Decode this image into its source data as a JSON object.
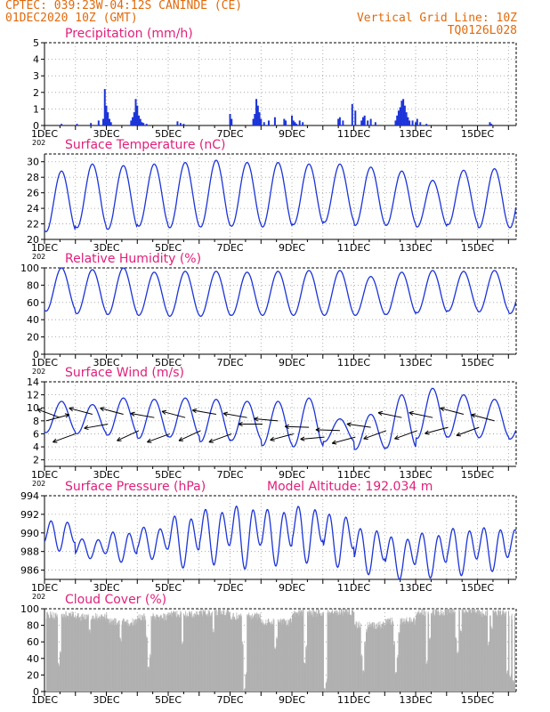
{
  "header": {
    "left_line1": "CPTEC:   039:23W-04:12S  CANINDE (CE)",
    "left_line2": "01DEC2020 10Z (GMT)",
    "right_line1": "Vertical Grid Line: 10Z",
    "right_line2": "TQ0126L028"
  },
  "colors": {
    "header": "#e06a0c",
    "title": "#e0207a",
    "series": "#1c34d8",
    "cloud": "#b0b0b0",
    "arrow": "#000000",
    "grid": "#9a9a9a"
  },
  "x_axis": {
    "labels": [
      "1DEC",
      "3DEC",
      "5DEC",
      "7DEC",
      "9DEC",
      "11DEC",
      "13DEC",
      "15DEC"
    ],
    "label_days": [
      0,
      2,
      4,
      6,
      8,
      10,
      12,
      14
    ],
    "year_stub": "202",
    "start": "01DEC2020 10Z",
    "span_days": 15.25
  },
  "chart_data": [
    {
      "type": "bar",
      "title": "Precipitation (mm/h)",
      "ylim": [
        0,
        5
      ],
      "yticks": [
        "0",
        "1",
        "2",
        "3",
        "4",
        "5"
      ],
      "x_days": [
        0.55,
        1.05,
        1.5,
        1.75,
        1.9,
        1.95,
        2.0,
        2.05,
        2.1,
        2.15,
        2.8,
        2.85,
        2.9,
        2.95,
        3.0,
        3.05,
        3.1,
        3.15,
        3.2,
        3.3,
        4.3,
        4.4,
        4.5,
        6.0,
        6.05,
        6.75,
        6.8,
        6.85,
        6.9,
        6.95,
        7.0,
        7.1,
        7.25,
        7.45,
        7.75,
        7.8,
        8.0,
        8.05,
        8.1,
        8.15,
        8.25,
        8.35,
        9.5,
        9.55,
        9.65,
        9.95,
        10.05,
        10.25,
        10.3,
        10.35,
        10.45,
        10.55,
        10.7,
        11.35,
        11.4,
        11.45,
        11.5,
        11.55,
        11.6,
        11.65,
        11.7,
        11.75,
        11.8,
        11.9,
        12.0,
        12.05,
        12.15,
        12.35,
        14.4,
        14.45
      ],
      "values": [
        0.1,
        0.1,
        0.15,
        0.3,
        0.4,
        2.2,
        1.2,
        0.8,
        0.4,
        0.2,
        0.3,
        0.5,
        0.8,
        1.6,
        1.2,
        0.6,
        0.4,
        0.2,
        0.15,
        0.1,
        0.25,
        0.15,
        0.1,
        0.7,
        0.4,
        0.4,
        0.7,
        1.6,
        1.2,
        0.8,
        0.4,
        0.2,
        0.3,
        0.5,
        0.4,
        0.3,
        0.6,
        0.3,
        0.2,
        0.1,
        0.3,
        0.2,
        0.4,
        0.5,
        0.3,
        1.3,
        0.9,
        0.3,
        0.5,
        0.6,
        0.3,
        0.4,
        0.2,
        0.3,
        0.6,
        0.9,
        1.1,
        1.5,
        1.6,
        1.2,
        0.8,
        0.5,
        0.3,
        0.3,
        0.2,
        0.4,
        0.2,
        0.1,
        0.2,
        0.1
      ]
    },
    {
      "type": "line",
      "title": "Surface Temperature (nC)",
      "ylim": [
        20,
        31
      ],
      "yticks": [
        "20",
        "22",
        "24",
        "26",
        "28",
        "30"
      ],
      "daily_min": [
        21,
        21.5,
        21.3,
        21.7,
        21.5,
        21.6,
        21.7,
        21.6,
        21.9,
        22.2,
        21.8,
        21.8,
        21.6,
        21.9,
        21.5,
        21.5
      ],
      "daily_max": [
        28.8,
        29.7,
        29.5,
        29.7,
        29.9,
        30.2,
        29.9,
        29.9,
        29.7,
        29.7,
        29.3,
        28.8,
        27.6,
        28.9,
        29.1,
        29.8
      ]
    },
    {
      "type": "line",
      "title": "Relative Humidity (%)",
      "ylim": [
        0,
        100
      ],
      "yticks": [
        "0",
        "20",
        "40",
        "60",
        "80",
        "100"
      ],
      "daily_min": [
        50,
        47,
        46,
        45,
        44,
        44,
        45,
        45,
        45,
        45,
        45,
        46,
        48,
        50,
        49,
        47
      ],
      "daily_max": [
        100,
        98,
        100,
        95,
        96,
        96,
        95,
        96,
        97,
        97,
        90,
        95,
        97,
        96,
        97,
        90
      ]
    },
    {
      "type": "line",
      "title": "Surface Wind (m/s)",
      "ylim": [
        1,
        14
      ],
      "yticks": [
        "2",
        "4",
        "6",
        "8",
        "10",
        "12",
        "14"
      ],
      "daily_min": [
        6.2,
        6,
        5.8,
        5.3,
        5.5,
        4.8,
        5,
        4.2,
        4,
        4.8,
        3.6,
        3.8,
        5.3,
        5.5,
        5.4,
        5.2
      ],
      "daily_max": [
        11,
        10.5,
        11.5,
        11.3,
        11.5,
        11.3,
        11,
        11,
        11.5,
        8.3,
        9,
        12,
        13,
        12,
        11.3,
        9.5
      ],
      "arrows": [
        {
          "day": 0.05,
          "speed": 8,
          "dir_deg": 15
        },
        {
          "day": 0.5,
          "speed": 8.5,
          "dir_deg": 160
        },
        {
          "day": 1.0,
          "speed": 6,
          "dir_deg": 200
        },
        {
          "day": 1.55,
          "speed": 9,
          "dir_deg": 165
        },
        {
          "day": 2.05,
          "speed": 7.5,
          "dir_deg": 190
        },
        {
          "day": 2.55,
          "speed": 9,
          "dir_deg": 165
        },
        {
          "day": 3.05,
          "speed": 6.5,
          "dir_deg": 205
        },
        {
          "day": 3.55,
          "speed": 8.5,
          "dir_deg": 170
        },
        {
          "day": 4.05,
          "speed": 6,
          "dir_deg": 200
        },
        {
          "day": 4.55,
          "speed": 8.5,
          "dir_deg": 165
        },
        {
          "day": 5.05,
          "speed": 6.5,
          "dir_deg": 205
        },
        {
          "day": 5.55,
          "speed": 9,
          "dir_deg": 170
        },
        {
          "day": 6.05,
          "speed": 6,
          "dir_deg": 200
        },
        {
          "day": 6.55,
          "speed": 8.5,
          "dir_deg": 170
        },
        {
          "day": 7.05,
          "speed": 7.5,
          "dir_deg": 180
        },
        {
          "day": 7.55,
          "speed": 8,
          "dir_deg": 175
        },
        {
          "day": 8.05,
          "speed": 6,
          "dir_deg": 195
        },
        {
          "day": 8.55,
          "speed": 7,
          "dir_deg": 178
        },
        {
          "day": 9.05,
          "speed": 5.5,
          "dir_deg": 185
        },
        {
          "day": 9.55,
          "speed": 6.5,
          "dir_deg": 178
        },
        {
          "day": 10.05,
          "speed": 5.5,
          "dir_deg": 195
        },
        {
          "day": 10.55,
          "speed": 7,
          "dir_deg": 172
        },
        {
          "day": 11.05,
          "speed": 6.5,
          "dir_deg": 200
        },
        {
          "day": 11.55,
          "speed": 8.5,
          "dir_deg": 168
        },
        {
          "day": 12.05,
          "speed": 6.5,
          "dir_deg": 200
        },
        {
          "day": 12.55,
          "speed": 8.5,
          "dir_deg": 168
        },
        {
          "day": 13.05,
          "speed": 7,
          "dir_deg": 195
        },
        {
          "day": 13.55,
          "speed": 9,
          "dir_deg": 165
        },
        {
          "day": 14.05,
          "speed": 7,
          "dir_deg": 200
        },
        {
          "day": 14.55,
          "speed": 8,
          "dir_deg": 165
        }
      ]
    },
    {
      "type": "line",
      "title": "Surface Pressure (hPa)",
      "subtitle": "Model Altitude: 192.034 m",
      "ylim": [
        985,
        994
      ],
      "yticks": [
        "986",
        "988",
        "990",
        "992",
        "994"
      ],
      "daily_min": [
        988.5,
        987.5,
        987.3,
        987.7,
        987.2,
        987.6,
        987.4,
        987.5,
        987.9,
        987.3,
        986.3,
        985.8,
        986,
        986.3,
        986.6,
        986.8
      ],
      "daily_max": [
        991.2,
        989.3,
        990,
        990.5,
        991.6,
        992.3,
        992.6,
        992.3,
        992.6,
        991.8,
        990.3,
        989.4,
        989.8,
        990.3,
        990.4,
        990.2
      ],
      "semi_diurnal": [
        0.35,
        0.3,
        0.35,
        0.4,
        0.45,
        0.45,
        0.5,
        0.45,
        0.5,
        0.45,
        0.4,
        0.45,
        0.45,
        0.45,
        0.4,
        0.4
      ]
    },
    {
      "type": "bar",
      "title": "Cloud Cover (%)",
      "ylim": [
        0,
        100
      ],
      "yticks": [
        "0",
        "20",
        "40",
        "60",
        "80",
        "100"
      ],
      "typical": [
        92,
        90,
        84,
        90,
        93,
        95,
        91,
        84,
        95,
        96,
        80,
        85,
        96,
        98,
        95,
        90
      ],
      "dips": [
        {
          "day": 0.45,
          "value": 30
        },
        {
          "day": 0.5,
          "value": 45
        },
        {
          "day": 1.45,
          "value": 70
        },
        {
          "day": 2.45,
          "value": 60
        },
        {
          "day": 3.3,
          "value": 62
        },
        {
          "day": 3.35,
          "value": 25
        },
        {
          "day": 3.4,
          "value": 40
        },
        {
          "day": 4.45,
          "value": 55
        },
        {
          "day": 5.45,
          "value": 70
        },
        {
          "day": 6.4,
          "value": 55
        },
        {
          "day": 6.45,
          "value": 0
        },
        {
          "day": 6.5,
          "value": 20
        },
        {
          "day": 7.45,
          "value": 50
        },
        {
          "day": 7.5,
          "value": 62
        },
        {
          "day": 8.4,
          "value": 30
        },
        {
          "day": 8.45,
          "value": 50
        },
        {
          "day": 9.05,
          "value": 0
        },
        {
          "day": 9.1,
          "value": 10
        },
        {
          "day": 10.25,
          "value": 40
        },
        {
          "day": 10.3,
          "value": 20
        },
        {
          "day": 10.35,
          "value": 55
        },
        {
          "day": 10.4,
          "value": 70
        },
        {
          "day": 10.45,
          "value": 82
        },
        {
          "day": 11.3,
          "value": 55
        },
        {
          "day": 11.35,
          "value": 20
        },
        {
          "day": 11.4,
          "value": 40
        },
        {
          "day": 11.45,
          "value": 68
        },
        {
          "day": 12.35,
          "value": 32
        },
        {
          "day": 12.45,
          "value": 60
        },
        {
          "day": 13.3,
          "value": 62
        },
        {
          "day": 13.35,
          "value": 45
        },
        {
          "day": 13.45,
          "value": 70
        },
        {
          "day": 14.35,
          "value": 55
        },
        {
          "day": 14.45,
          "value": 75
        },
        {
          "day": 14.95,
          "value": 20
        },
        {
          "day": 15.05,
          "value": 15
        },
        {
          "day": 15.15,
          "value": 8
        }
      ]
    }
  ]
}
